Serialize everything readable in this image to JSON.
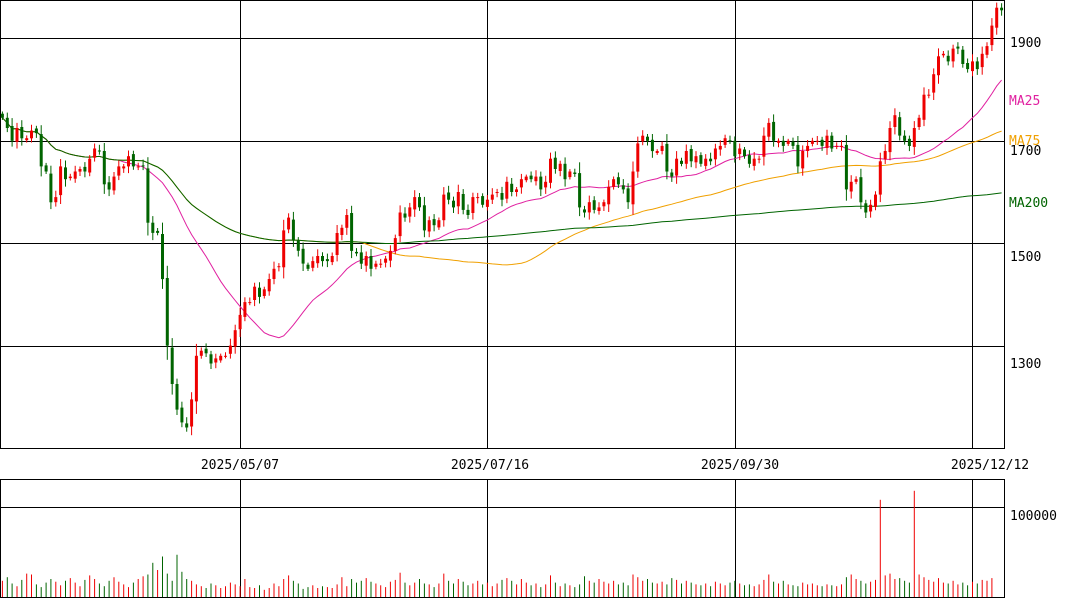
{
  "chart_data": [
    {
      "type": "candlestick",
      "title": "",
      "price_ticks": [
        "1300",
        "1500",
        "1700",
        "1900"
      ],
      "ylim": [
        1100,
        1975
      ],
      "date_labels": [
        "2025/05/07",
        "2025/07/16",
        "2025/09/30",
        "2025/12/12"
      ],
      "moving_averages": [
        {
          "name": "MA25",
          "color": "#e020a0"
        },
        {
          "name": "MA75",
          "color": "#f0a000"
        },
        {
          "name": "MA200",
          "color": "#006400"
        }
      ],
      "up_color": "#ee0000",
      "down_color": "#006400",
      "series": [
        {
          "name": "close",
          "values": [
            1745,
            1725,
            1700,
            1725,
            1705,
            1705,
            1720,
            1715,
            1650,
            1640,
            1580,
            1590,
            1650,
            1625,
            1630,
            1640,
            1645,
            1640,
            1665,
            1685,
            1680,
            1615,
            1605,
            1630,
            1650,
            1650,
            1670,
            1650,
            1650,
            1650,
            1540,
            1520,
            1520,
            1430,
            1300,
            1225,
            1175,
            1150,
            1140,
            1195,
            1280,
            1290,
            1285,
            1265,
            1275,
            1280,
            1280,
            1300,
            1330,
            1360,
            1385,
            1385,
            1415,
            1395,
            1410,
            1430,
            1450,
            1455,
            1525,
            1550,
            1505,
            1485,
            1460,
            1450,
            1465,
            1475,
            1465,
            1465,
            1475,
            1520,
            1530,
            1555,
            1485,
            1480,
            1460,
            1475,
            1450,
            1460,
            1460,
            1470,
            1485,
            1510,
            1560,
            1550,
            1570,
            1590,
            1570,
            1525,
            1545,
            1535,
            1545,
            1595,
            1585,
            1570,
            1600,
            1565,
            1555,
            1590,
            1590,
            1575,
            1585,
            1595,
            1600,
            1585,
            1620,
            1600,
            1605,
            1625,
            1630,
            1625,
            1630,
            1605,
            1620,
            1665,
            1645,
            1655,
            1625,
            1640,
            1635,
            1570,
            1560,
            1580,
            1565,
            1570,
            1580,
            1610,
            1625,
            1615,
            1605,
            1580,
            1640,
            1695,
            1710,
            1700,
            1680,
            1680,
            1690,
            1640,
            1630,
            1665,
            1655,
            1680,
            1660,
            1670,
            1655,
            1665,
            1660,
            1685,
            1690,
            1705,
            1700,
            1670,
            1685,
            1670,
            1655,
            1665,
            1665,
            1710,
            1735,
            1700,
            1700,
            1690,
            1700,
            1690,
            1650,
            1680,
            1690,
            1700,
            1700,
            1690,
            1710,
            1685,
            1690,
            1690,
            1605,
            1620,
            1625,
            1580,
            1560,
            1575,
            1595,
            1660,
            1680,
            1725,
            1750,
            1710,
            1700,
            1690,
            1725,
            1745,
            1790,
            1790,
            1830,
            1865,
            1870,
            1855,
            1880,
            1880,
            1850,
            1840,
            1855,
            1840,
            1870,
            1885,
            1925,
            1960,
            1955
          ]
        }
      ]
    },
    {
      "type": "bar",
      "title": "",
      "volume_ticks": [
        "100000"
      ],
      "ylim": [
        0,
        130000
      ],
      "values": [
        18000,
        22000,
        15000,
        12000,
        19000,
        26000,
        25000,
        14000,
        11000,
        16000,
        20000,
        17000,
        13000,
        18000,
        21000,
        16000,
        12000,
        19000,
        24000,
        20000,
        15000,
        12000,
        18000,
        22000,
        17000,
        14000,
        11000,
        16000,
        20000,
        23000,
        25000,
        38000,
        30000,
        45000,
        26000,
        18000,
        47000,
        28000,
        20000,
        18000,
        14000,
        12000,
        10000,
        15000,
        13000,
        10000,
        12000,
        16000,
        14000,
        12000,
        20000,
        11000,
        10000,
        13000,
        8000,
        10000,
        15000,
        12000,
        20000,
        24000,
        18000,
        15000,
        9000,
        11000,
        13000,
        10000,
        12000,
        11000,
        10000,
        14000,
        22000,
        12000,
        20000,
        16000,
        18000,
        21000,
        17000,
        15000,
        13000,
        11000,
        17000,
        19000,
        27000,
        16000,
        13000,
        16000,
        20000,
        15000,
        14000,
        11000,
        15000,
        26000,
        18000,
        15000,
        20000,
        17000,
        13000,
        15000,
        18000,
        14000,
        16000,
        12000,
        15000,
        19000,
        21000,
        18000,
        14000,
        20000,
        16000,
        13000,
        15000,
        11000,
        14000,
        24000,
        16000,
        12000,
        15000,
        13000,
        11000,
        14000,
        23000,
        18000,
        16000,
        20000,
        17000,
        15000,
        18000,
        14000,
        16000,
        13000,
        25000,
        22000,
        18000,
        20000,
        16000,
        15000,
        17000,
        14000,
        21000,
        19000,
        15000,
        18000,
        16000,
        14000,
        13000,
        15000,
        12000,
        17000,
        15000,
        13000,
        16000,
        18000,
        15000,
        13000,
        14000,
        12000,
        14000,
        19000,
        25000,
        17000,
        15000,
        18000,
        14000,
        13000,
        12000,
        16000,
        14000,
        15000,
        13000,
        12000,
        14000,
        13000,
        12000,
        14000,
        22000,
        25000,
        20000,
        18000,
        15000,
        17000,
        19000,
        108000,
        24000,
        26000,
        20000,
        21000,
        18000,
        16000,
        118000,
        25000,
        22000,
        19000,
        17000,
        21000,
        16000,
        15000,
        18000,
        14000,
        16000,
        13000,
        17000,
        15000,
        19000,
        18000,
        21000
      ]
    }
  ]
}
